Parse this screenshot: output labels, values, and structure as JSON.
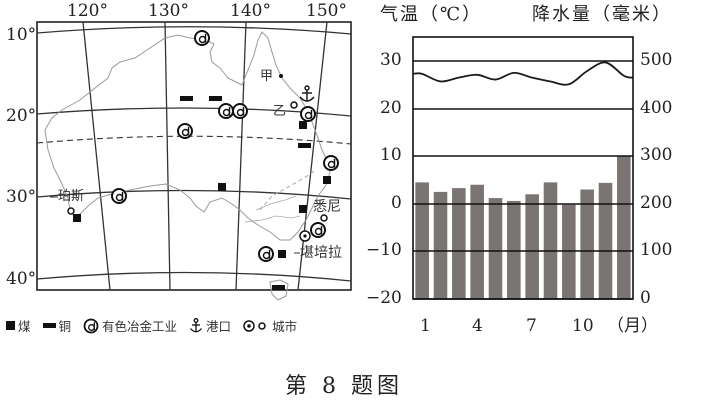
{
  "figure": {
    "caption": "第 8 题图"
  },
  "map": {
    "longitude_labels": [
      "120°",
      "130°",
      "140°",
      "150°"
    ],
    "latitude_labels": [
      "10°",
      "20°",
      "30°",
      "40°"
    ],
    "place_labels": {
      "jia": "甲",
      "yi": "乙",
      "perth": "珀斯",
      "sydney": "悉尼",
      "canberra": "堪培拉"
    },
    "legend": [
      {
        "icon": "coal-square-icon",
        "label": "煤"
      },
      {
        "icon": "copper-bar-icon",
        "label": "铜"
      },
      {
        "icon": "nonferrous-metallurgy-icon",
        "label": "有色冶金工业"
      },
      {
        "icon": "port-anchor-icon",
        "label": "港口"
      },
      {
        "icon": "city-icon",
        "label": "城市"
      }
    ]
  },
  "chart_labels": {
    "left_title": "气温（℃）",
    "right_title": "降水量（毫米）",
    "left_ticks": [
      "30",
      "20",
      "10",
      "0",
      "−10",
      "−20"
    ],
    "right_ticks": [
      "500",
      "400",
      "300",
      "200",
      "100",
      "0"
    ],
    "x_ticks": [
      "1",
      "4",
      "7",
      "10"
    ],
    "x_unit": "（月）"
  },
  "chart_data": {
    "type": "bar+line",
    "title": "",
    "categories": [
      "1",
      "2",
      "3",
      "4",
      "5",
      "6",
      "7",
      "8",
      "9",
      "10",
      "11",
      "12"
    ],
    "xlabel": "月",
    "series": [
      {
        "name": "降水量（毫米）",
        "type": "bar",
        "axis": "right",
        "values": [
          245,
          225,
          233,
          240,
          212,
          206,
          220,
          245,
          198,
          230,
          244,
          300
        ]
      },
      {
        "name": "气温（℃）",
        "type": "line",
        "axis": "left",
        "values": [
          27.4,
          25.8,
          26.6,
          27.2,
          26.2,
          27.6,
          26.6,
          25.8,
          25.2,
          28.0,
          29.8,
          27.0
        ]
      }
    ],
    "ylabel_left": "气温（℃）",
    "ylim_left": [
      -20,
      35
    ],
    "left_ticks": [
      30,
      20,
      10,
      0,
      -10,
      -20
    ],
    "ylabel_right": "降水量（毫米）",
    "ylim_right": [
      0,
      550
    ],
    "right_ticks": [
      500,
      400,
      300,
      200,
      100,
      0
    ],
    "grid": "horizontal",
    "bar_color": "#7a7472",
    "line_color": "#1a1a1a"
  }
}
